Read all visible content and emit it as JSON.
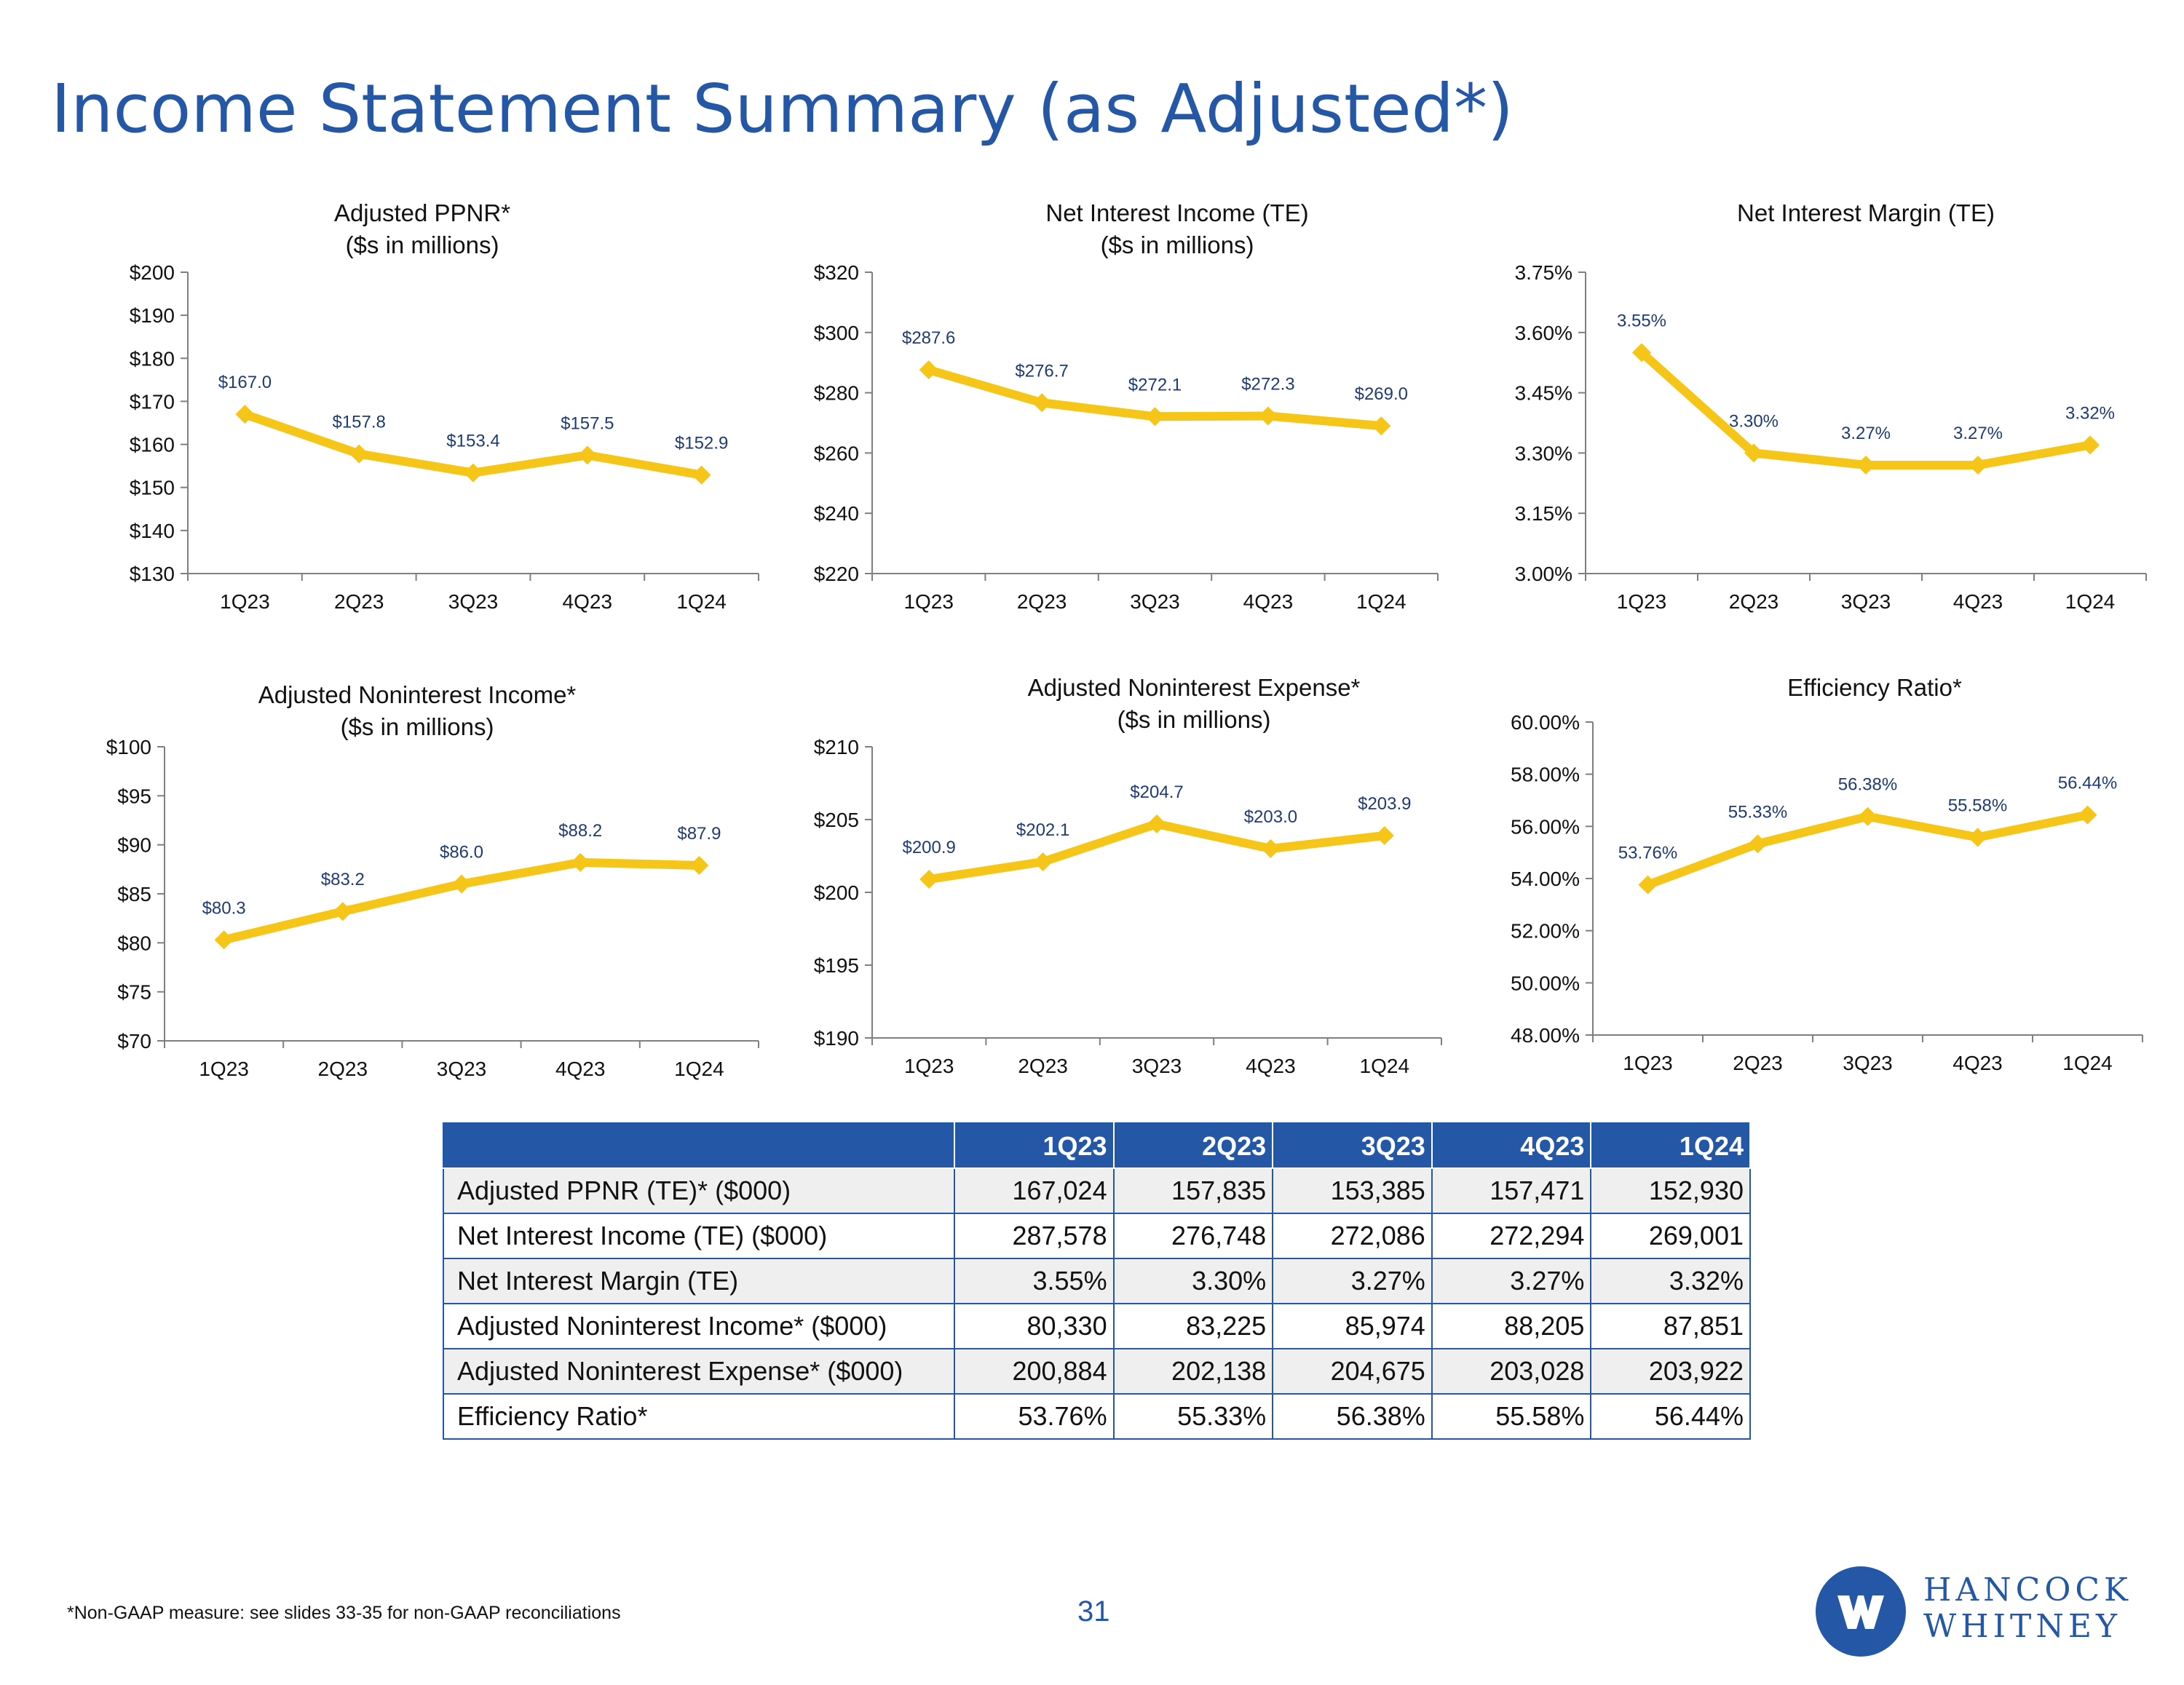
{
  "page": {
    "title": "Income Statement Summary (as Adjusted*)",
    "footnote": "*Non-GAAP measure: see slides 33-35 for non-GAAP reconciliations",
    "page_number": "31",
    "logo": {
      "line1": "HANCOCK",
      "line2": "WHITNEY",
      "mark": "HW"
    }
  },
  "colors": {
    "title": "#2458a6",
    "line": "#f5c518",
    "table_header": "#2458a6",
    "label": "#1f3b73"
  },
  "chart_data": [
    {
      "id": "ppnr",
      "type": "line",
      "title": [
        "Adjusted PPNR*",
        "($s in millions)"
      ],
      "categories": [
        "1Q23",
        "2Q23",
        "3Q23",
        "4Q23",
        "1Q24"
      ],
      "values": [
        167.0,
        157.8,
        153.4,
        157.5,
        152.9
      ],
      "labels": [
        "$167.0",
        "$157.8",
        "$153.4",
        "$157.5",
        "$152.9"
      ],
      "ylim": [
        130,
        200
      ],
      "yticks": [
        130,
        140,
        150,
        160,
        170,
        180,
        190,
        200
      ],
      "yticklabels": [
        "$130",
        "$140",
        "$150",
        "$160",
        "$170",
        "$180",
        "$190",
        "$200"
      ]
    },
    {
      "id": "nii",
      "type": "line",
      "title": [
        "Net Interest Income (TE)",
        "($s in millions)"
      ],
      "categories": [
        "1Q23",
        "2Q23",
        "3Q23",
        "4Q23",
        "1Q24"
      ],
      "values": [
        287.6,
        276.7,
        272.1,
        272.3,
        269.0
      ],
      "labels": [
        "$287.6",
        "$276.7",
        "$272.1",
        "$272.3",
        "$269.0"
      ],
      "ylim": [
        220,
        320
      ],
      "yticks": [
        220,
        240,
        260,
        280,
        300,
        320
      ],
      "yticklabels": [
        "$220",
        "$240",
        "$260",
        "$280",
        "$300",
        "$320"
      ]
    },
    {
      "id": "nim",
      "type": "line",
      "title": [
        "Net Interest Margin (TE)"
      ],
      "categories": [
        "1Q23",
        "2Q23",
        "3Q23",
        "4Q23",
        "1Q24"
      ],
      "values": [
        3.55,
        3.3,
        3.27,
        3.27,
        3.32
      ],
      "labels": [
        "3.55%",
        "3.30%",
        "3.27%",
        "3.27%",
        "3.32%"
      ],
      "ylim": [
        3.0,
        3.75
      ],
      "yticks": [
        3.0,
        3.15,
        3.3,
        3.45,
        3.6,
        3.75
      ],
      "yticklabels": [
        "3.00%",
        "3.15%",
        "3.30%",
        "3.45%",
        "3.60%",
        "3.75%"
      ]
    },
    {
      "id": "nonint_income",
      "type": "line",
      "title": [
        "Adjusted Noninterest Income*",
        "($s in millions)"
      ],
      "categories": [
        "1Q23",
        "2Q23",
        "3Q23",
        "4Q23",
        "1Q24"
      ],
      "values": [
        80.3,
        83.2,
        86.0,
        88.2,
        87.9
      ],
      "labels": [
        "$80.3",
        "$83.2",
        "$86.0",
        "$88.2",
        "$87.9"
      ],
      "ylim": [
        70,
        100
      ],
      "yticks": [
        70,
        75,
        80,
        85,
        90,
        95,
        100
      ],
      "yticklabels": [
        "$70",
        "$75",
        "$80",
        "$85",
        "$90",
        "$95",
        "$100"
      ]
    },
    {
      "id": "nonint_expense",
      "type": "line",
      "title": [
        "Adjusted Noninterest Expense*",
        "($s in millions)"
      ],
      "categories": [
        "1Q23",
        "2Q23",
        "3Q23",
        "4Q23",
        "1Q24"
      ],
      "values": [
        200.9,
        202.1,
        204.7,
        203.0,
        203.9
      ],
      "labels": [
        "$200.9",
        "$202.1",
        "$204.7",
        "$203.0",
        "$203.9"
      ],
      "ylim": [
        190,
        210
      ],
      "yticks": [
        190,
        195,
        200,
        205,
        210
      ],
      "yticklabels": [
        "$190",
        "$195",
        "$200",
        "$205",
        "$210"
      ]
    },
    {
      "id": "efficiency",
      "type": "line",
      "title": [
        "Efficiency Ratio*"
      ],
      "categories": [
        "1Q23",
        "2Q23",
        "3Q23",
        "4Q23",
        "1Q24"
      ],
      "values": [
        53.76,
        55.33,
        56.38,
        55.58,
        56.44
      ],
      "labels": [
        "53.76%",
        "55.33%",
        "56.38%",
        "55.58%",
        "56.44%"
      ],
      "ylim": [
        48,
        60
      ],
      "yticks": [
        48,
        50,
        52,
        54,
        56,
        58,
        60
      ],
      "yticklabels": [
        "48.00%",
        "50.00%",
        "52.00%",
        "54.00%",
        "56.00%",
        "58.00%",
        "60.00%"
      ]
    }
  ],
  "table": {
    "headers": [
      "1Q23",
      "2Q23",
      "3Q23",
      "4Q23",
      "1Q24"
    ],
    "rows": [
      {
        "label": "Adjusted PPNR (TE)* ($000)",
        "values": [
          "167,024",
          "157,835",
          "153,385",
          "157,471",
          "152,930"
        ]
      },
      {
        "label": "Net Interest Income (TE) ($000)",
        "values": [
          "287,578",
          "276,748",
          "272,086",
          "272,294",
          "269,001"
        ]
      },
      {
        "label": "Net Interest Margin (TE)",
        "values": [
          "3.55%",
          "3.30%",
          "3.27%",
          "3.27%",
          "3.32%"
        ]
      },
      {
        "label": "Adjusted Noninterest Income* ($000)",
        "values": [
          "80,330",
          "83,225",
          "85,974",
          "88,205",
          "87,851"
        ]
      },
      {
        "label": "Adjusted Noninterest Expense* ($000)",
        "values": [
          "200,884",
          "202,138",
          "204,675",
          "203,028",
          "203,922"
        ]
      },
      {
        "label": "Efficiency Ratio*",
        "values": [
          "53.76%",
          "55.33%",
          "56.38%",
          "55.58%",
          "56.44%"
        ]
      }
    ]
  }
}
